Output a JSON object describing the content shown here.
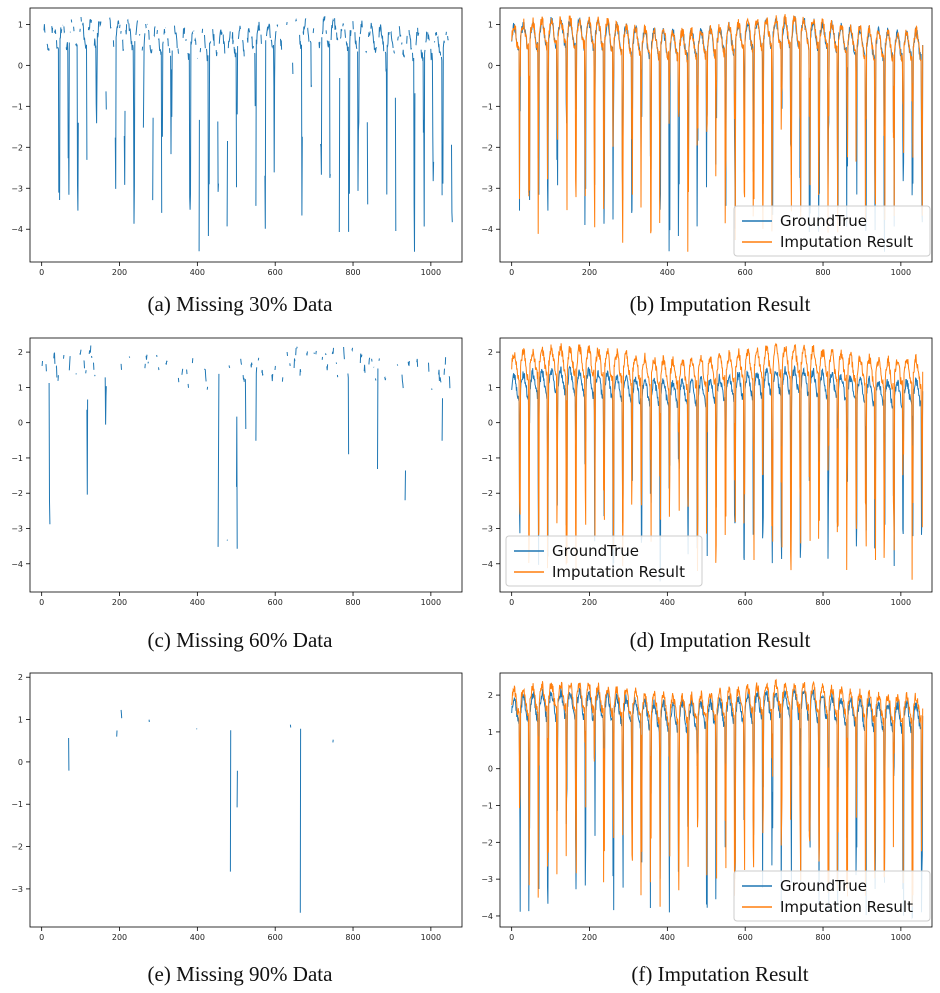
{
  "colors": {
    "ground_true": "#1f77b4",
    "imputation": "#ff7f0e",
    "axes": "#000000",
    "background": "#ffffff"
  },
  "captions": {
    "a": "(a) Missing 30% Data",
    "b": "(b) Imputation Result",
    "c": "(c) Missing 60% Data",
    "d": "(d) Imputation Result",
    "e": "(e) Missing 90% Data",
    "f": "(f) Imputation Result"
  },
  "chart_data": [
    {
      "id": "a",
      "type": "line",
      "title": "",
      "xlabel": "",
      "ylabel": "",
      "xlim": [
        -30,
        1080
      ],
      "ylim": [
        -4.8,
        1.4
      ],
      "xticks": [
        0,
        200,
        400,
        600,
        800,
        1000
      ],
      "yticks": [
        -4,
        -3,
        -2,
        -1,
        0,
        1
      ],
      "grid": false,
      "legend": "none",
      "missing_fraction": 0.3,
      "series": [
        {
          "color": "#1f77b4",
          "x_range": [
            0,
            1056
          ],
          "y_range": [
            -4.55,
            1.2
          ],
          "n_points": 1056,
          "seed": 11
        }
      ]
    },
    {
      "id": "b",
      "type": "line",
      "title": "",
      "xlabel": "",
      "ylabel": "",
      "xlim": [
        -30,
        1080
      ],
      "ylim": [
        -4.8,
        1.4
      ],
      "xticks": [
        0,
        200,
        400,
        600,
        800,
        1000
      ],
      "yticks": [
        -4,
        -3,
        -2,
        -1,
        0,
        1
      ],
      "grid": false,
      "legend": "bottom-right",
      "series": [
        {
          "name": "GroundTrue",
          "color": "#1f77b4",
          "x_range": [
            0,
            1056
          ],
          "y_range": [
            -4.55,
            1.2
          ],
          "n_points": 1056,
          "seed": 11
        },
        {
          "name": "Imputation Result",
          "color": "#ff7f0e",
          "x_range": [
            0,
            1056
          ],
          "y_range": [
            -4.55,
            1.25
          ],
          "n_points": 1056,
          "seed": 11
        }
      ]
    },
    {
      "id": "c",
      "type": "line",
      "title": "",
      "xlabel": "",
      "ylabel": "",
      "xlim": [
        -30,
        1080
      ],
      "ylim": [
        -4.8,
        2.4
      ],
      "xticks": [
        0,
        200,
        400,
        600,
        800,
        1000
      ],
      "yticks": [
        -4,
        -3,
        -2,
        -1,
        0,
        1,
        2
      ],
      "grid": false,
      "legend": "none",
      "missing_fraction": 0.6,
      "series": [
        {
          "color": "#1f77b4",
          "x_range": [
            0,
            1056
          ],
          "y_range": [
            -4.35,
            2.2
          ],
          "n_points": 1056,
          "seed": 23
        }
      ]
    },
    {
      "id": "d",
      "type": "line",
      "title": "",
      "xlabel": "",
      "ylabel": "",
      "xlim": [
        -30,
        1080
      ],
      "ylim": [
        -4.8,
        2.4
      ],
      "xticks": [
        0,
        200,
        400,
        600,
        800,
        1000
      ],
      "yticks": [
        -4,
        -3,
        -2,
        -1,
        0,
        1,
        2
      ],
      "grid": false,
      "legend": "bottom-left",
      "series": [
        {
          "name": "GroundTrue",
          "color": "#1f77b4",
          "x_range": [
            0,
            1056
          ],
          "y_range": [
            -4.5,
            1.6
          ],
          "n_points": 1056,
          "seed": 23
        },
        {
          "name": "Imputation Result",
          "color": "#ff7f0e",
          "x_range": [
            0,
            1056
          ],
          "y_range": [
            -4.45,
            2.25
          ],
          "n_points": 1056,
          "seed": 23
        }
      ]
    },
    {
      "id": "e",
      "type": "line",
      "title": "",
      "xlabel": "",
      "ylabel": "",
      "xlim": [
        -30,
        1080
      ],
      "ylim": [
        -3.9,
        2.1
      ],
      "xticks": [
        0,
        200,
        400,
        600,
        800,
        1000
      ],
      "yticks": [
        -3,
        -2,
        -1,
        0,
        1,
        2
      ],
      "grid": false,
      "legend": "none",
      "missing_fraction": 0.9,
      "series": [
        {
          "color": "#1f77b4",
          "x_range": [
            55,
            845
          ],
          "y_range": [
            -3.7,
            1.3
          ],
          "n_points": 1056,
          "seed": 37
        }
      ]
    },
    {
      "id": "f",
      "type": "line",
      "title": "",
      "xlabel": "",
      "ylabel": "",
      "xlim": [
        -30,
        1080
      ],
      "ylim": [
        -4.3,
        2.6
      ],
      "xticks": [
        0,
        200,
        400,
        600,
        800,
        1000
      ],
      "yticks": [
        -4,
        -3,
        -2,
        -1,
        0,
        1,
        2
      ],
      "grid": false,
      "legend": "bottom-right",
      "series": [
        {
          "name": "GroundTrue",
          "color": "#1f77b4",
          "x_range": [
            0,
            1056
          ],
          "y_range": [
            -4.05,
            2.2
          ],
          "n_points": 1056,
          "seed": 37
        },
        {
          "name": "Imputation Result",
          "color": "#ff7f0e",
          "x_range": [
            0,
            1056
          ],
          "y_range": [
            -3.75,
            2.4
          ],
          "n_points": 1056,
          "seed": 37
        }
      ]
    }
  ]
}
